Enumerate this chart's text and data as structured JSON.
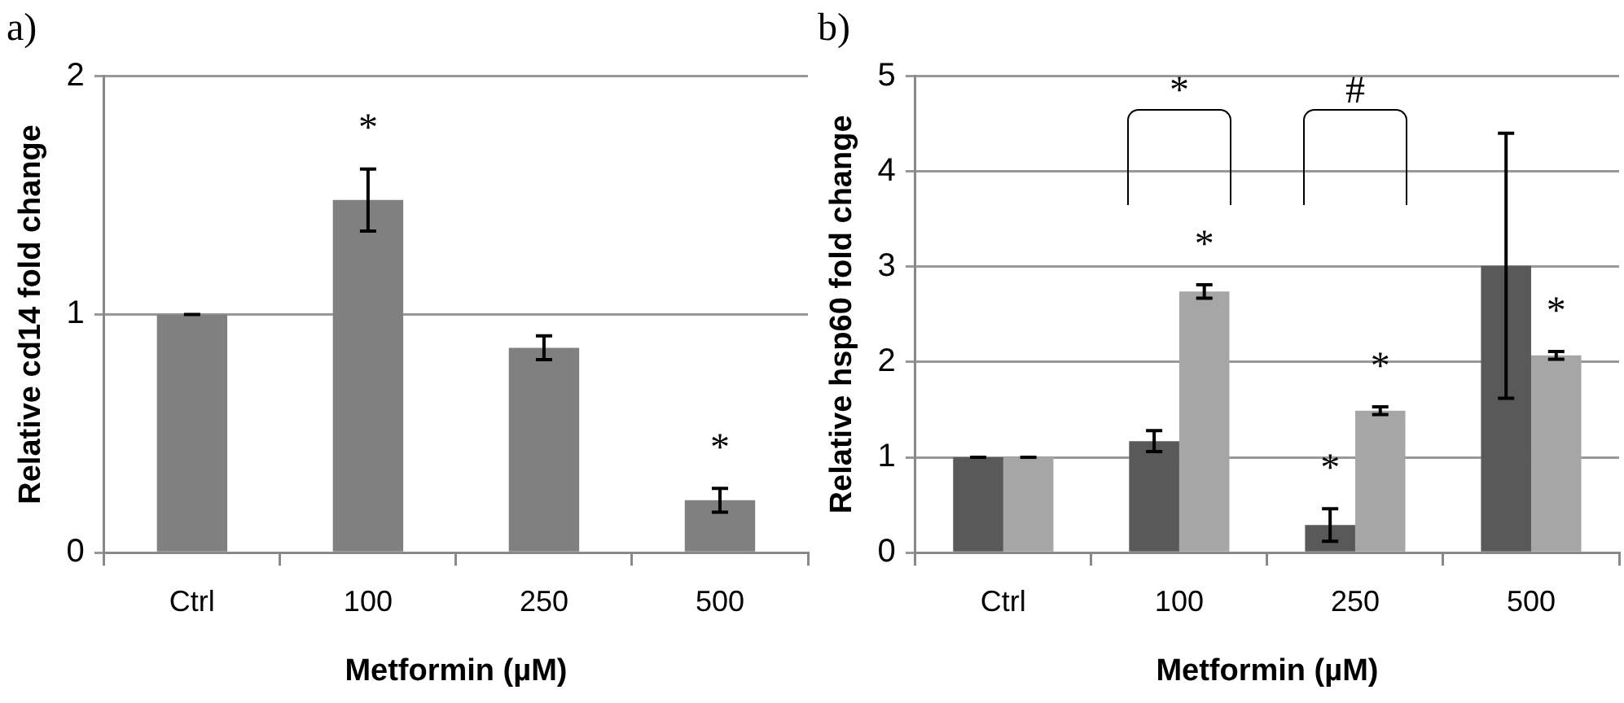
{
  "chart_data": [
    {
      "type": "bar",
      "title": "a)",
      "xlabel": "Metformin (µM)",
      "ylabel": "Relative cd14 fold change",
      "categories": [
        "Ctrl",
        "100",
        "250",
        "500"
      ],
      "values": [
        1.0,
        1.48,
        0.86,
        0.22
      ],
      "errors": [
        0,
        0.13,
        0.05,
        0.05
      ],
      "color": "#808080",
      "ylim": [
        0,
        2
      ],
      "yticks": [
        0,
        1,
        2
      ],
      "grid": "y",
      "legend": false,
      "annotations": [
        "*",
        "*"
      ]
    },
    {
      "type": "bar",
      "title": "b)",
      "xlabel": "Metformin (µM)",
      "ylabel": "Relative hsp60 fold change",
      "categories": [
        "Ctrl",
        "100",
        "250",
        "500"
      ],
      "series": [
        {
          "color": "#595959",
          "values": [
            1.0,
            1.17,
            0.29,
            3.01
          ],
          "errors": [
            0,
            0.11,
            0.17,
            1.39
          ]
        },
        {
          "color": "#a6a6a6",
          "values": [
            1.0,
            2.74,
            1.49,
            2.07
          ],
          "errors": [
            0,
            0.07,
            0.04,
            0.04
          ]
        }
      ],
      "ylim": [
        0,
        5
      ],
      "yticks": [
        0,
        1,
        2,
        3,
        4,
        5
      ],
      "grid": "y",
      "legend": false,
      "annotations": [
        "*",
        "#",
        "*",
        "*",
        "*",
        "*"
      ]
    }
  ]
}
